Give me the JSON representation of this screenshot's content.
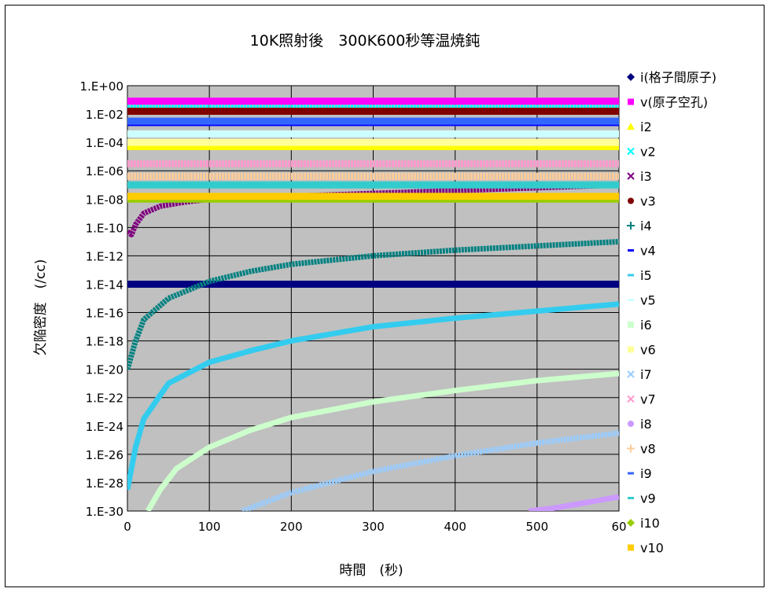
{
  "chart_data": {
    "type": "scatter",
    "title": "10K照射後　300K600秒等温焼鈍",
    "xlabel": "時間　(秒)",
    "ylabel": "欠陥密度　(/cc)",
    "x_ticks": [
      "0",
      "100",
      "200",
      "300",
      "400",
      "500",
      "60"
    ],
    "y_ticks": [
      "1.E+00",
      "1.E-02",
      "1.E-04",
      "1.E-06",
      "1.E-08",
      "1.E-10",
      "1.E-12",
      "1.E-14",
      "1.E-16",
      "1.E-18",
      "1.E-20",
      "1.E-22",
      "1.E-24",
      "1.E-26",
      "1.E-28",
      "1.E-30"
    ],
    "xlim": [
      0,
      600
    ],
    "ylim_log10": [
      -30,
      0
    ],
    "y_scale": "log",
    "grid": true,
    "legend_position": "right",
    "plot_background": "#c0c0c0",
    "series": [
      {
        "name": "i(格子間原子)",
        "color": "#000080",
        "marker": "diamond",
        "x": [
          0,
          600
        ],
        "y_log10": [
          -14,
          -14
        ]
      },
      {
        "name": "v(原子空孔)",
        "color": "#ff00ff",
        "marker": "square",
        "x": [
          0,
          600
        ],
        "y_log10": [
          -1.1,
          -1.1
        ]
      },
      {
        "name": "i2",
        "color": "#ffff00",
        "marker": "triangle",
        "x": [
          0,
          600
        ],
        "y_log10": [
          -4.3,
          -4.3
        ]
      },
      {
        "name": "v2",
        "color": "#00ffff",
        "marker": "x",
        "x": [
          0,
          600
        ],
        "y_log10": [
          -1.6,
          -1.6
        ]
      },
      {
        "name": "i3",
        "color": "#800080",
        "marker": "x",
        "x": [
          0,
          5,
          10,
          20,
          40,
          70,
          100,
          150,
          200,
          300,
          400,
          500,
          600
        ],
        "y_log10": [
          -10.3,
          -10.5,
          -9.8,
          -9.0,
          -8.5,
          -8.2,
          -8.0,
          -7.9,
          -7.8,
          -7.6,
          -7.4,
          -7.2,
          -7.0
        ]
      },
      {
        "name": "v3",
        "color": "#800000",
        "marker": "circle",
        "x": [
          0,
          600
        ],
        "y_log10": [
          -1.8,
          -1.8
        ]
      },
      {
        "name": "i4",
        "color": "#008080",
        "marker": "plus",
        "x": [
          0,
          10,
          20,
          50,
          100,
          150,
          200,
          300,
          400,
          500,
          600
        ],
        "y_log10": [
          -20.0,
          -18.0,
          -16.5,
          -15.0,
          -13.8,
          -13.1,
          -12.6,
          -12.0,
          -11.6,
          -11.3,
          -11.0
        ]
      },
      {
        "name": "v4",
        "color": "#0000ff",
        "marker": "dash",
        "x": [
          0,
          600
        ],
        "y_log10": [
          -2.6,
          -2.6
        ]
      },
      {
        "name": "i5",
        "color": "#33ccee",
        "marker": "dash",
        "x": [
          0,
          10,
          20,
          50,
          100,
          150,
          200,
          300,
          400,
          500,
          600
        ],
        "y_log10": [
          -28.5,
          -25.5,
          -23.5,
          -21.0,
          -19.5,
          -18.7,
          -18.0,
          -17.0,
          -16.4,
          -15.9,
          -15.4
        ]
      },
      {
        "name": "v5",
        "color": "#ccffff",
        "marker": "dash",
        "x": [
          0,
          600
        ],
        "y_log10": [
          -3.4,
          -3.4
        ]
      },
      {
        "name": "i6",
        "color": "#ccffcc",
        "marker": "square",
        "x": [
          25,
          40,
          60,
          100,
          150,
          200,
          300,
          400,
          500,
          600
        ],
        "y_log10": [
          -30.0,
          -28.5,
          -27.0,
          -25.5,
          -24.3,
          -23.4,
          -22.3,
          -21.5,
          -20.8,
          -20.3
        ]
      },
      {
        "name": "v6",
        "color": "#ffff99",
        "marker": "square",
        "x": [
          0,
          600
        ],
        "y_log10": [
          -4.0,
          -4.0
        ]
      },
      {
        "name": "i7",
        "color": "#99ccff",
        "marker": "x",
        "x": [
          140,
          200,
          300,
          400,
          500,
          600
        ],
        "y_log10": [
          -30.0,
          -28.7,
          -27.2,
          -26.1,
          -25.2,
          -24.5
        ]
      },
      {
        "name": "v7",
        "color": "#ff99cc",
        "marker": "x",
        "x": [
          0,
          600
        ],
        "y_log10": [
          -5.5,
          -5.5
        ]
      },
      {
        "name": "i8",
        "color": "#cc99ff",
        "marker": "circle",
        "x": [
          490,
          520,
          550,
          580,
          600
        ],
        "y_log10": [
          -30.0,
          -29.8,
          -29.5,
          -29.2,
          -29.0
        ]
      },
      {
        "name": "v8",
        "color": "#ffcc99",
        "marker": "plus",
        "x": [
          0,
          600
        ],
        "y_log10": [
          -6.4,
          -6.4
        ]
      },
      {
        "name": "i9",
        "color": "#3366ff",
        "marker": "dash",
        "x": [
          0,
          600
        ],
        "y_log10": [
          -2.5,
          -2.5
        ]
      },
      {
        "name": "v9",
        "color": "#33cccc",
        "marker": "dash",
        "x": [
          0,
          600
        ],
        "y_log10": [
          -7.0,
          -7.0
        ]
      },
      {
        "name": "i10",
        "color": "#99cc00",
        "marker": "diamond",
        "x": [
          0,
          600
        ],
        "y_log10": [
          -8.0,
          -8.0
        ]
      },
      {
        "name": "v10",
        "color": "#ffcc00",
        "marker": "square",
        "x": [
          0,
          600
        ],
        "y_log10": [
          -7.8,
          -7.8
        ]
      }
    ]
  }
}
